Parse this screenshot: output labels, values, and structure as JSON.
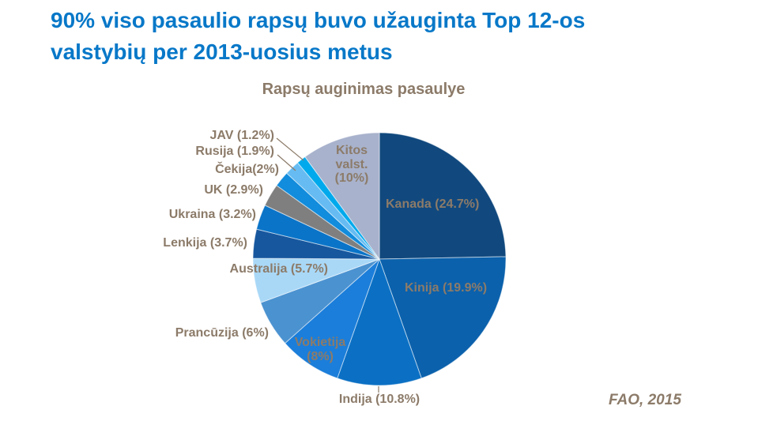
{
  "page": {
    "title": "90% viso pasaulio rapsų buvo užauginta Top 12-os\nvalstybių per 2013-uosius metus",
    "source": "FAO, 2015"
  },
  "colors": {
    "title_accent": "#0878C8",
    "label_text": "#8C7B69",
    "background": "#FFFFFF"
  },
  "chart_data": {
    "type": "pie",
    "title": "Rapsų auginimas pasaulye",
    "unit": "%",
    "start_angle": "12 o'clock",
    "direction": "clockwise",
    "legend_position": "labels-on-and-around-pie",
    "slices": [
      {
        "id": "kanada",
        "name": "Kanada",
        "value": 24.7,
        "label": "Kanada (24.7%)",
        "color": "#11497E"
      },
      {
        "id": "kinija",
        "name": "Kinija",
        "value": 19.9,
        "label": "Kinija (19.9%)",
        "color": "#0B61AC"
      },
      {
        "id": "indija",
        "name": "Indija",
        "value": 10.8,
        "label": "Indija (10.8%)",
        "color": "#0B70C4"
      },
      {
        "id": "vokietija",
        "name": "Vokietija",
        "value": 8,
        "label": "Vokietija\n(8%)",
        "color": "#1B7EDA"
      },
      {
        "id": "prancuzija",
        "name": "Prancūzija",
        "value": 6,
        "label": "Prancūzija (6%)",
        "color": "#4B92D0"
      },
      {
        "id": "australija",
        "name": "Australija",
        "value": 5.7,
        "label": "Australija (5.7%)",
        "color": "#A9D8F7"
      },
      {
        "id": "lenkija",
        "name": "Lenkija",
        "value": 3.7,
        "label": "Lenkija (3.7%)",
        "color": "#17579E"
      },
      {
        "id": "ukraina",
        "name": "Ukraina",
        "value": 3.2,
        "label": "Ukraina (3.2%)",
        "color": "#0A74C8"
      },
      {
        "id": "uk",
        "name": "UK",
        "value": 2.9,
        "label": "UK (2.9%)",
        "color": "#7F7F7F"
      },
      {
        "id": "cekija",
        "name": "Čekija",
        "value": 2,
        "label": "Čekija(2%)",
        "color": "#128CDC"
      },
      {
        "id": "rusija",
        "name": "Rusija",
        "value": 1.9,
        "label": "Rusija (1.9%)",
        "color": "#66BCF2"
      },
      {
        "id": "jav",
        "name": "JAV",
        "value": 1.2,
        "label": "JAV (1.2%)",
        "color": "#00A9EC"
      },
      {
        "id": "kitos-valst",
        "name": "Kitos valst.",
        "value": 10,
        "label": "Kitos\nvalst.\n(10%)",
        "color": "#A8B2CC"
      }
    ]
  }
}
